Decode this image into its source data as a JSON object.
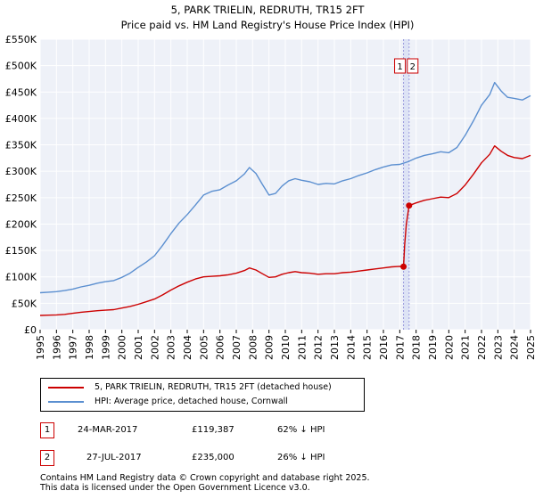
{
  "title": "5, PARK TRIELIN, REDRUTH, TR15 2FT",
  "subtitle": "Price paid vs. HM Land Registry's House Price Index (HPI)",
  "chart_data": {
    "type": "line",
    "xlim": [
      1995,
      2025
    ],
    "ylim": [
      0,
      550000
    ],
    "y_ticks": [
      {
        "value": 0,
        "label": "£0"
      },
      {
        "value": 50000,
        "label": "£50K"
      },
      {
        "value": 100000,
        "label": "£100K"
      },
      {
        "value": 150000,
        "label": "£150K"
      },
      {
        "value": 200000,
        "label": "£200K"
      },
      {
        "value": 250000,
        "label": "£250K"
      },
      {
        "value": 300000,
        "label": "£300K"
      },
      {
        "value": 350000,
        "label": "£350K"
      },
      {
        "value": 400000,
        "label": "£400K"
      },
      {
        "value": 450000,
        "label": "£450K"
      },
      {
        "value": 500000,
        "label": "£500K"
      },
      {
        "value": 550000,
        "label": "£550K"
      }
    ],
    "x_ticks": [
      "1995",
      "1996",
      "1997",
      "1998",
      "1999",
      "2000",
      "2001",
      "2002",
      "2003",
      "2004",
      "2005",
      "2006",
      "2007",
      "2008",
      "2009",
      "2010",
      "2011",
      "2012",
      "2013",
      "2014",
      "2015",
      "2016",
      "2017",
      "2018",
      "2019",
      "2020",
      "2021",
      "2022",
      "2023",
      "2024",
      "2025"
    ],
    "series": [
      {
        "name": "HPI: Average price, detached house, Cornwall",
        "color": "#5b8fd0",
        "points": [
          [
            1995.0,
            70000
          ],
          [
            1995.5,
            71000
          ],
          [
            1996.0,
            72000
          ],
          [
            1996.5,
            74000
          ],
          [
            1997.0,
            77000
          ],
          [
            1997.5,
            81000
          ],
          [
            1998.0,
            84000
          ],
          [
            1998.5,
            88000
          ],
          [
            1999.0,
            91000
          ],
          [
            1999.5,
            93000
          ],
          [
            2000.0,
            99000
          ],
          [
            2000.5,
            107000
          ],
          [
            2001.0,
            118000
          ],
          [
            2001.5,
            128000
          ],
          [
            2002.0,
            140000
          ],
          [
            2002.5,
            160000
          ],
          [
            2003.0,
            182000
          ],
          [
            2003.5,
            202000
          ],
          [
            2004.0,
            218000
          ],
          [
            2004.5,
            236000
          ],
          [
            2005.0,
            255000
          ],
          [
            2005.5,
            262000
          ],
          [
            2006.0,
            265000
          ],
          [
            2006.5,
            274000
          ],
          [
            2007.0,
            282000
          ],
          [
            2007.5,
            295000
          ],
          [
            2007.8,
            307000
          ],
          [
            2008.2,
            296000
          ],
          [
            2008.6,
            275000
          ],
          [
            2009.0,
            255000
          ],
          [
            2009.4,
            258000
          ],
          [
            2009.8,
            272000
          ],
          [
            2010.2,
            282000
          ],
          [
            2010.6,
            286000
          ],
          [
            2011.0,
            283000
          ],
          [
            2011.5,
            280000
          ],
          [
            2012.0,
            275000
          ],
          [
            2012.5,
            277000
          ],
          [
            2013.0,
            276000
          ],
          [
            2013.5,
            282000
          ],
          [
            2014.0,
            286000
          ],
          [
            2014.5,
            292000
          ],
          [
            2015.0,
            297000
          ],
          [
            2015.5,
            303000
          ],
          [
            2016.0,
            308000
          ],
          [
            2016.5,
            312000
          ],
          [
            2017.0,
            313000
          ],
          [
            2017.5,
            318000
          ],
          [
            2018.0,
            325000
          ],
          [
            2018.5,
            330000
          ],
          [
            2019.0,
            333000
          ],
          [
            2019.5,
            337000
          ],
          [
            2020.0,
            335000
          ],
          [
            2020.5,
            345000
          ],
          [
            2021.0,
            368000
          ],
          [
            2021.5,
            395000
          ],
          [
            2022.0,
            425000
          ],
          [
            2022.5,
            445000
          ],
          [
            2022.8,
            468000
          ],
          [
            2023.2,
            452000
          ],
          [
            2023.6,
            440000
          ],
          [
            2024.0,
            438000
          ],
          [
            2024.5,
            435000
          ],
          [
            2025.0,
            443000
          ]
        ]
      },
      {
        "name": "5, PARK TRIELIN, REDRUTH, TR15 2FT (detached house)",
        "color": "#cc0000",
        "points": [
          [
            1995.0,
            27000
          ],
          [
            1995.5,
            27500
          ],
          [
            1996.0,
            28000
          ],
          [
            1996.5,
            29000
          ],
          [
            1997.0,
            31000
          ],
          [
            1997.5,
            33000
          ],
          [
            1998.0,
            34500
          ],
          [
            1998.5,
            36000
          ],
          [
            1999.0,
            37000
          ],
          [
            1999.5,
            38000
          ],
          [
            2000.0,
            41000
          ],
          [
            2000.5,
            44000
          ],
          [
            2001.0,
            48000
          ],
          [
            2001.5,
            53000
          ],
          [
            2002.0,
            58000
          ],
          [
            2002.5,
            66000
          ],
          [
            2003.0,
            75000
          ],
          [
            2003.5,
            83000
          ],
          [
            2004.0,
            90000
          ],
          [
            2004.5,
            96000
          ],
          [
            2005.0,
            100000
          ],
          [
            2005.5,
            101000
          ],
          [
            2006.0,
            102000
          ],
          [
            2006.5,
            104000
          ],
          [
            2007.0,
            107000
          ],
          [
            2007.5,
            112000
          ],
          [
            2007.8,
            117000
          ],
          [
            2008.2,
            113000
          ],
          [
            2008.6,
            106000
          ],
          [
            2009.0,
            99000
          ],
          [
            2009.4,
            100000
          ],
          [
            2009.8,
            105000
          ],
          [
            2010.2,
            108000
          ],
          [
            2010.6,
            110000
          ],
          [
            2011.0,
            108000
          ],
          [
            2011.5,
            107000
          ],
          [
            2012.0,
            105000
          ],
          [
            2012.5,
            106000
          ],
          [
            2013.0,
            106000
          ],
          [
            2013.5,
            108000
          ],
          [
            2014.0,
            109000
          ],
          [
            2014.5,
            111000
          ],
          [
            2015.0,
            113000
          ],
          [
            2015.5,
            115000
          ],
          [
            2016.0,
            117000
          ],
          [
            2016.5,
            119000
          ],
          [
            2017.0,
            120000
          ],
          [
            2017.23,
            119387
          ],
          [
            2017.3,
            160000
          ],
          [
            2017.4,
            200000
          ],
          [
            2017.57,
            235000
          ],
          [
            2018.0,
            240000
          ],
          [
            2018.5,
            245000
          ],
          [
            2019.0,
            248000
          ],
          [
            2019.5,
            251000
          ],
          [
            2020.0,
            250000
          ],
          [
            2020.5,
            258000
          ],
          [
            2021.0,
            274000
          ],
          [
            2021.5,
            294000
          ],
          [
            2022.0,
            316000
          ],
          [
            2022.5,
            332000
          ],
          [
            2022.8,
            348000
          ],
          [
            2023.2,
            338000
          ],
          [
            2023.6,
            330000
          ],
          [
            2024.0,
            326000
          ],
          [
            2024.5,
            324000
          ],
          [
            2025.0,
            330000
          ]
        ]
      }
    ],
    "transactions": [
      {
        "id": "1",
        "date": "24-MAR-2017",
        "year": 2017.23,
        "price": 119387,
        "price_label": "£119,387",
        "hpi_note": "62% ↓ HPI"
      },
      {
        "id": "2",
        "date": "27-JUL-2017",
        "year": 2017.57,
        "price": 235000,
        "price_label": "£235,000",
        "hpi_note": "26% ↓ HPI"
      }
    ],
    "legend": [
      "5, PARK TRIELIN, REDRUTH, TR15 2FT (detached house)",
      "HPI: Average price, detached house, Cornwall"
    ],
    "grid": true
  },
  "footer": {
    "line1": "Contains HM Land Registry data © Crown copyright and database right 2025.",
    "line2": "This data is licensed under the Open Government Licence v3.0."
  },
  "colors": {
    "price": "#cc0000",
    "hpi": "#5b8fd0",
    "plot_bg": "#eef1f8",
    "grid": "#ffffff",
    "vline": "#9999dd"
  }
}
